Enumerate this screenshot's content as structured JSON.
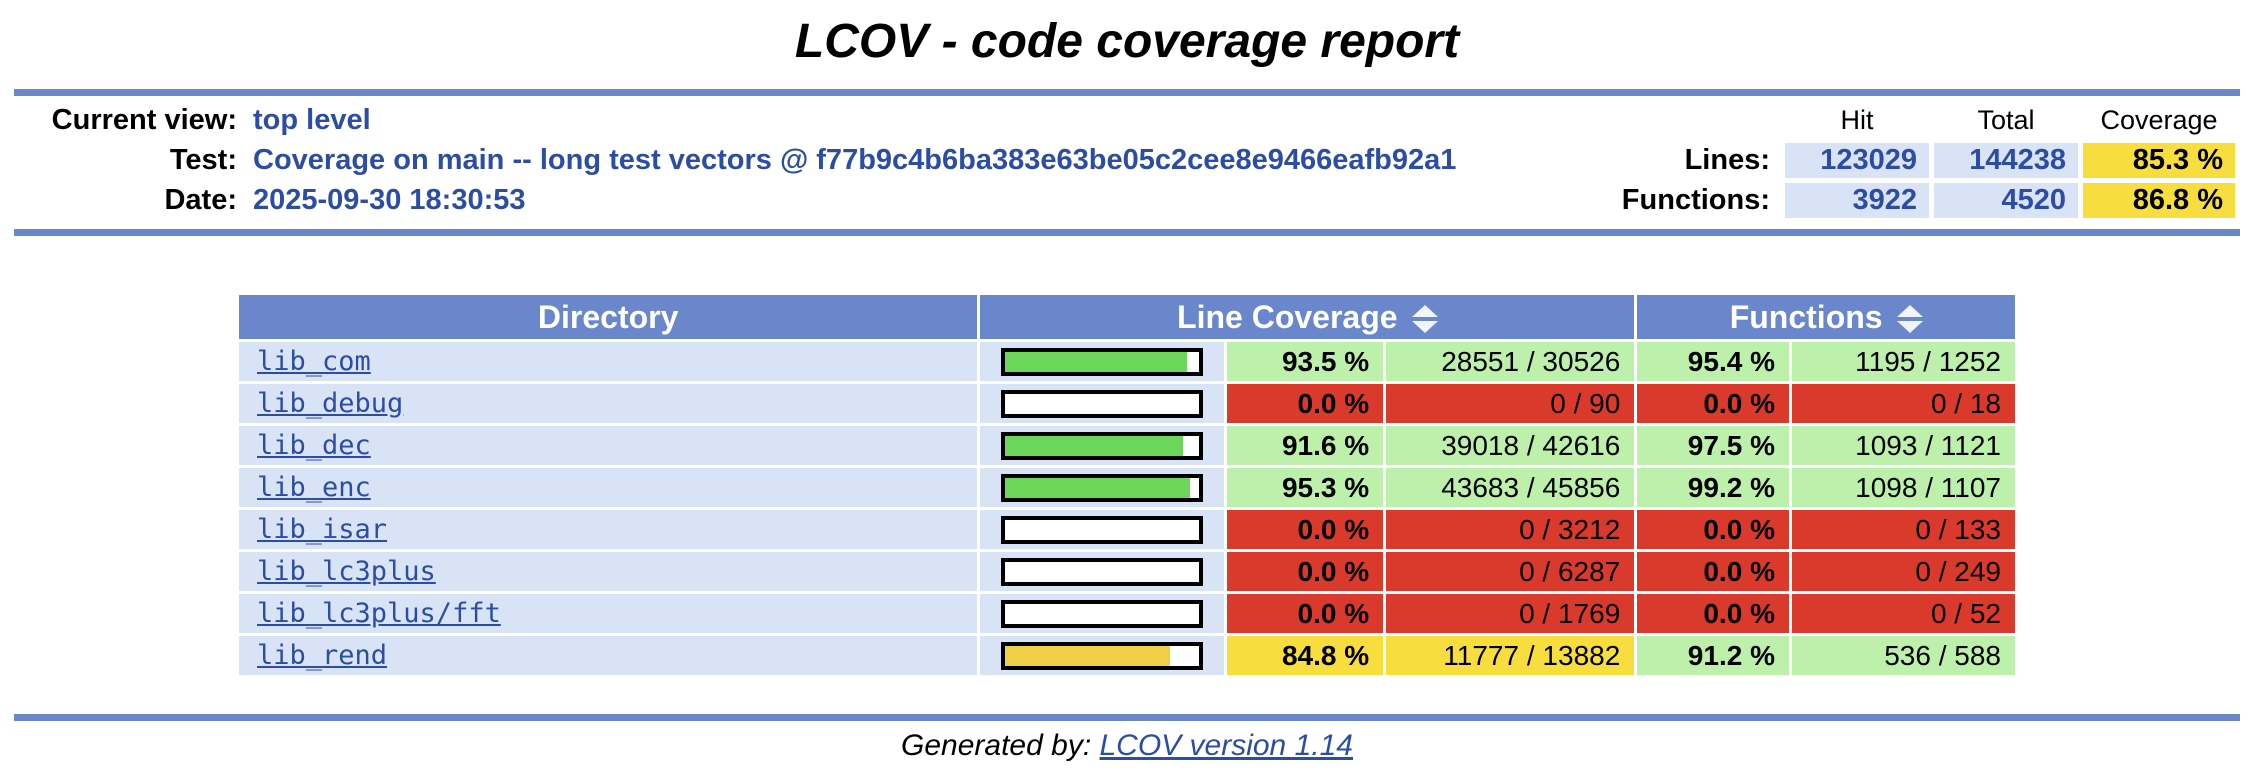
{
  "title": "LCOV - code coverage report",
  "header": {
    "rows": [
      {
        "label": "Current view:",
        "value": "top level"
      },
      {
        "label": "Test:",
        "value": "Coverage on main -- long test vectors @ f77b9c4b6ba383e63be05c2cee8e9466eafb92a1"
      },
      {
        "label": "Date:",
        "value": "2025-09-30 18:30:53"
      }
    ],
    "stats": {
      "col_headers": {
        "hit": "Hit",
        "total": "Total",
        "coverage": "Coverage"
      },
      "rows": [
        {
          "label": "Lines:",
          "hit": "123029",
          "total": "144238",
          "coverage": "85.3 %"
        },
        {
          "label": "Functions:",
          "hit": "3922",
          "total": "4520",
          "coverage": "86.8 %"
        }
      ]
    }
  },
  "table": {
    "headers": {
      "directory": "Directory",
      "line_coverage": "Line Coverage",
      "functions": "Functions"
    },
    "sort_icon": "up-down-arrows",
    "rows": [
      {
        "directory": "lib_com",
        "bar_pct": 93.5,
        "bar_level": "hi",
        "line_pct": "93.5 %",
        "line_ratio": "28551 / 30526",
        "line_level": "hi",
        "func_pct": "95.4 %",
        "func_ratio": "1195 / 1252",
        "func_level": "hi"
      },
      {
        "directory": "lib_debug",
        "bar_pct": 0,
        "bar_level": "lo",
        "line_pct": "0.0 %",
        "line_ratio": "0 / 90",
        "line_level": "lo",
        "func_pct": "0.0 %",
        "func_ratio": "0 / 18",
        "func_level": "lo"
      },
      {
        "directory": "lib_dec",
        "bar_pct": 91.6,
        "bar_level": "hi",
        "line_pct": "91.6 %",
        "line_ratio": "39018 / 42616",
        "line_level": "hi",
        "func_pct": "97.5 %",
        "func_ratio": "1093 / 1121",
        "func_level": "hi"
      },
      {
        "directory": "lib_enc",
        "bar_pct": 95.3,
        "bar_level": "hi",
        "line_pct": "95.3 %",
        "line_ratio": "43683 / 45856",
        "line_level": "hi",
        "func_pct": "99.2 %",
        "func_ratio": "1098 / 1107",
        "func_level": "hi"
      },
      {
        "directory": "lib_isar",
        "bar_pct": 0,
        "bar_level": "lo",
        "line_pct": "0.0 %",
        "line_ratio": "0 / 3212",
        "line_level": "lo",
        "func_pct": "0.0 %",
        "func_ratio": "0 / 133",
        "func_level": "lo"
      },
      {
        "directory": "lib_lc3plus",
        "bar_pct": 0,
        "bar_level": "lo",
        "line_pct": "0.0 %",
        "line_ratio": "0 / 6287",
        "line_level": "lo",
        "func_pct": "0.0 %",
        "func_ratio": "0 / 249",
        "func_level": "lo"
      },
      {
        "directory": "lib_lc3plus/fft",
        "bar_pct": 0,
        "bar_level": "lo",
        "line_pct": "0.0 %",
        "line_ratio": "0 / 1769",
        "line_level": "lo",
        "func_pct": "0.0 %",
        "func_ratio": "0 / 52",
        "func_level": "lo"
      },
      {
        "directory": "lib_rend",
        "bar_pct": 84.8,
        "bar_level": "med",
        "line_pct": "84.8 %",
        "line_ratio": "11777 / 13882",
        "line_level": "med",
        "func_pct": "91.2 %",
        "func_ratio": "536 / 588",
        "func_level": "hi"
      }
    ]
  },
  "footer": {
    "prefix": "Generated by:",
    "link_label": "LCOV version 1.14"
  },
  "colors": {
    "header_blue": "#6A87CB",
    "light_blue_cell": "#D9E3F6",
    "green_cell": "#BCF0AB",
    "yellow_cell": "#F7DD3E",
    "red_cell": "#D93A2B",
    "bar_green": "#6CD65A",
    "bar_yellow": "#EFCF45",
    "link_blue": "#2B4DA5"
  }
}
